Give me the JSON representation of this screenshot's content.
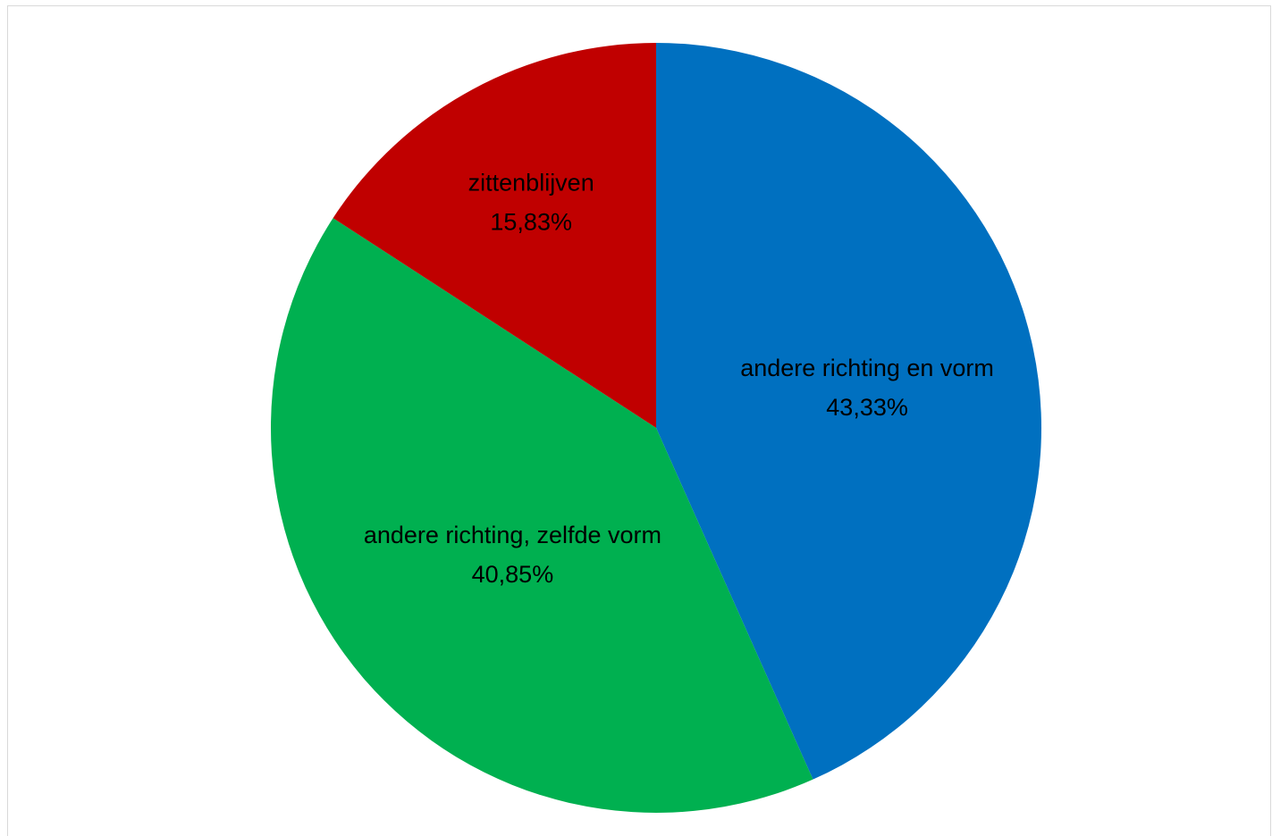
{
  "chart_data": {
    "type": "pie",
    "title": "",
    "slices": [
      {
        "label": "andere richting en vorm",
        "value": 43.33,
        "value_label": "43,33%",
        "color": "#0070C0"
      },
      {
        "label": "andere richting, zelfde vorm",
        "value": 40.85,
        "value_label": "40,85%",
        "color": "#00B050"
      },
      {
        "label": "zittenblijven",
        "value": 15.83,
        "value_label": "15,83%",
        "color": "#C00000"
      }
    ],
    "start_angle": "12 o'clock",
    "direction": "clockwise",
    "legend": "none"
  }
}
